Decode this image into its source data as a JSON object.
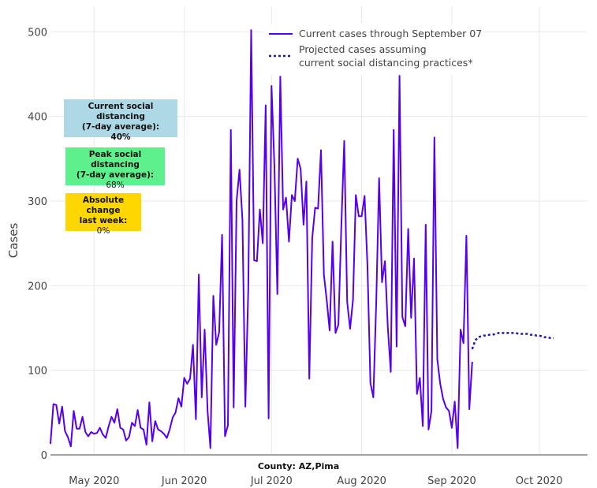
{
  "chart_data": {
    "type": "line",
    "ylabel": "Cases",
    "ylim": [
      0,
      520
    ],
    "y_ticks": [
      0,
      100,
      200,
      300,
      400,
      500
    ],
    "x_ticks": [
      "May 2020",
      "Jun 2020",
      "Jul 2020",
      "Aug 2020",
      "Sep 2020",
      "Oct 2020"
    ],
    "xlabel": "County: AZ,Pima",
    "grid": true,
    "legend_position": "top-center",
    "series": [
      {
        "name": "Current cases through September 07",
        "color": "#5500ee",
        "style": "solid",
        "x_start": "2020-04-16",
        "x_end": "2020-09-07",
        "values": [
          13,
          60,
          59,
          37,
          57,
          28,
          21,
          10,
          52,
          31,
          31,
          45,
          27,
          22,
          27,
          25,
          26,
          32,
          24,
          20,
          34,
          45,
          38,
          54,
          32,
          30,
          17,
          21,
          38,
          34,
          53,
          32,
          30,
          12,
          62,
          16,
          40,
          30,
          28,
          25,
          20,
          30,
          44,
          50,
          67,
          57,
          91,
          84,
          90,
          130,
          42,
          213,
          68,
          148,
          52,
          8,
          188,
          130,
          145,
          260,
          22,
          35,
          384,
          56,
          300,
          337,
          278,
          57,
          195,
          502,
          230,
          229,
          290,
          250,
          413,
          43,
          436,
          340,
          190,
          447,
          290,
          304,
          252,
          307,
          300,
          350,
          338,
          272,
          323,
          90,
          256,
          292,
          291,
          360,
          213,
          182,
          147,
          252,
          144,
          154,
          270,
          371,
          181,
          149,
          183,
          307,
          282,
          282,
          306,
          222,
          85,
          68,
          181,
          327,
          204,
          229,
          150,
          98,
          384,
          128,
          448,
          163,
          152,
          267,
          162,
          232,
          72,
          91,
          34,
          272,
          30,
          52,
          375,
          113,
          84,
          66,
          56,
          52,
          32,
          63,
          8,
          148,
          132,
          259,
          54,
          110
        ]
      },
      {
        "name": "Projected cases assuming current social distancing practices*",
        "color": "#1f1aa8",
        "style": "dotted",
        "x_start": "2020-09-08",
        "x_end": "2020-10-06",
        "values": [
          125,
          135,
          139,
          140,
          141,
          141,
          142,
          142,
          143,
          144,
          144,
          144,
          144,
          144,
          144,
          144,
          143,
          143,
          143,
          143,
          142,
          142,
          141,
          141,
          140,
          139,
          139,
          138,
          138
        ]
      }
    ]
  },
  "legend": {
    "line1": "Current cases through September 07",
    "line2a": "Projected cases assuming",
    "line2b": "current social distancing practices*"
  },
  "boxes": [
    {
      "head1": "Current social distancing",
      "head2": "(7-day average):",
      "value": "40%",
      "value_bold": true,
      "color": "#add8e6"
    },
    {
      "head1": "Peak social distancing",
      "head2": "(7-day average):",
      "value": "68%",
      "value_bold": false,
      "color": "#5ef08c"
    },
    {
      "head1": "Absolute change",
      "head2": "last week:",
      "value": "0%",
      "value_bold": false,
      "color": "#ffd700"
    }
  ]
}
